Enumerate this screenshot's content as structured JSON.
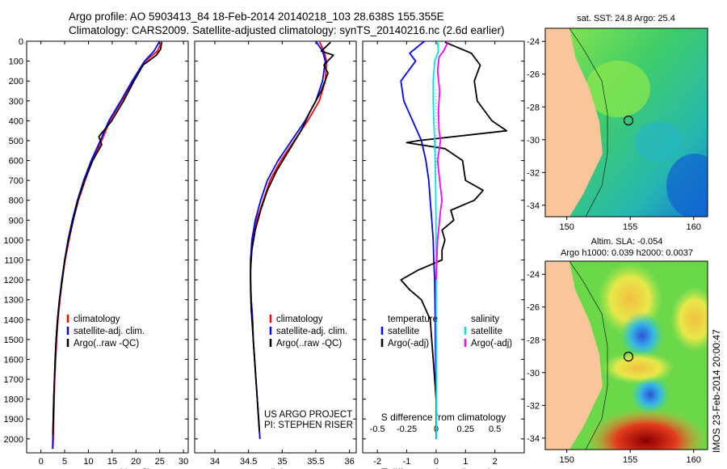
{
  "header": {
    "line1": "Argo profile: AO 5903413_84 18-Feb-2014 20140218_103 28.638S 155.355E",
    "line2": "Climatology: CARS2009. Satellite-adjusted climatology: synTS_20140216.nc (2.6d earlier)"
  },
  "colors": {
    "climatology": "#ff0000",
    "satellite": "#0000ff",
    "argo": "#000000",
    "sal_satellite": "#00e5e5",
    "sal_argo": "#ff00ff",
    "land": "#f8c69a"
  },
  "legend_temp_panel": [
    "climatology",
    "satellite-adj. clim.",
    "Argo(..raw -QC)"
  ],
  "legend_sal_panel": [
    "climatology",
    "satellite-adj. clim.",
    "Argo(..raw -QC)"
  ],
  "legend_diff": {
    "temp_header": "temperature",
    "sal_header": "salinity",
    "satellite": "satellite",
    "argo_adj": "Argo(-adj)"
  },
  "credit": {
    "line1": "US ARGO PROJECT",
    "line2": "PI: STEPHEN RISER"
  },
  "map_sst": {
    "title": "sat. SST: 24.8 Argo: 25.4"
  },
  "map_sla": {
    "title1": "Altim. SLA: -0.054",
    "title2": "Argo h1000: 0.039 h2000: 0.0037"
  },
  "side_stamp": "IMOS 23-Feb-2014 20:00:47",
  "chart_data": [
    {
      "type": "line",
      "xlabel": "temperature (deg C)",
      "ylabel": "",
      "xlim": [
        -3,
        31
      ],
      "ylim": [
        2070,
        0
      ],
      "xticks": [
        0,
        5,
        10,
        15,
        20,
        25,
        30
      ],
      "yticks": [
        0,
        100,
        200,
        300,
        400,
        500,
        600,
        700,
        800,
        900,
        1000,
        1100,
        1200,
        1300,
        1400,
        1500,
        1600,
        1700,
        1800,
        1900,
        2000
      ],
      "series": [
        {
          "name": "climatology",
          "color": "#ff0000",
          "x": [
            25.5,
            24.5,
            22,
            19.5,
            17,
            14.5,
            12.8,
            10.8,
            9.3,
            7.9,
            6.8,
            5.9,
            5.1,
            4.5,
            4.0,
            3.6,
            3.3,
            3.1,
            2.9,
            2.8,
            2.7,
            2.6,
            2.5
          ],
          "y": [
            0,
            50,
            100,
            200,
            300,
            400,
            500,
            600,
            700,
            800,
            900,
            1000,
            1100,
            1200,
            1300,
            1400,
            1500,
            1600,
            1700,
            1800,
            1900,
            2000,
            2050
          ]
        },
        {
          "name": "satellite-adj. clim.",
          "color": "#0000ff",
          "x": [
            25.0,
            23.8,
            21.8,
            19.2,
            16.8,
            14.3,
            12.5,
            10.6,
            9.0,
            7.7,
            6.6,
            5.7,
            5.0,
            4.4,
            3.9,
            3.5,
            3.2,
            3.0,
            2.85,
            2.7,
            2.6,
            2.5,
            2.45
          ],
          "y": [
            0,
            50,
            100,
            200,
            300,
            400,
            500,
            600,
            700,
            800,
            900,
            1000,
            1100,
            1200,
            1300,
            1400,
            1500,
            1600,
            1700,
            1800,
            1900,
            2000,
            2050
          ]
        },
        {
          "name": "Argo(..raw -QC)",
          "color": "#000000",
          "x": [
            25.4,
            25.2,
            24.3,
            21.5,
            19.6,
            17.4,
            14.9,
            12.2,
            12.8,
            10.9,
            9.2,
            7.8,
            6.8,
            5.8,
            5.0,
            4.5,
            3.9,
            3.5,
            3.2,
            3.0,
            2.85,
            2.7,
            2.6,
            2.5
          ],
          "y": [
            5,
            40,
            70,
            120,
            200,
            300,
            400,
            480,
            520,
            600,
            700,
            800,
            900,
            1000,
            1100,
            1200,
            1300,
            1400,
            1500,
            1600,
            1700,
            1800,
            1900,
            1980
          ]
        }
      ]
    },
    {
      "type": "line",
      "xlabel": "salinity",
      "ylabel": "",
      "xlim": [
        33.7,
        36.1
      ],
      "ylim": [
        2070,
        0
      ],
      "xticks": [
        34,
        34.5,
        35,
        35.5,
        36
      ],
      "series": [
        {
          "name": "climatology",
          "color": "#ff0000",
          "x": [
            35.55,
            35.62,
            35.66,
            35.64,
            35.55,
            35.38,
            35.18,
            34.98,
            34.82,
            34.72,
            34.62,
            34.56,
            34.53,
            34.53,
            34.54,
            34.56,
            34.57,
            34.59,
            34.61,
            34.63,
            34.65,
            34.67
          ],
          "y": [
            0,
            50,
            100,
            200,
            300,
            400,
            500,
            600,
            700,
            800,
            900,
            1000,
            1100,
            1200,
            1300,
            1400,
            1500,
            1600,
            1700,
            1800,
            1900,
            2000
          ]
        },
        {
          "name": "satellite-adj. clim.",
          "color": "#0000ff",
          "x": [
            35.5,
            35.6,
            35.64,
            35.6,
            35.5,
            35.34,
            35.14,
            34.94,
            34.78,
            34.68,
            34.6,
            34.55,
            34.53,
            34.53,
            34.54,
            34.56,
            34.57,
            34.59,
            34.61,
            34.63,
            34.65,
            34.67
          ],
          "y": [
            0,
            50,
            100,
            200,
            300,
            400,
            500,
            600,
            700,
            800,
            900,
            1000,
            1100,
            1200,
            1300,
            1400,
            1500,
            1600,
            1700,
            1800,
            1900,
            2000
          ]
        },
        {
          "name": "Argo(..raw -QC)",
          "color": "#000000",
          "x": [
            35.72,
            35.58,
            35.76,
            35.62,
            35.68,
            35.58,
            35.42,
            35.28,
            35.1,
            34.92,
            34.78,
            34.68,
            34.6,
            34.55,
            34.53,
            34.53,
            34.54,
            34.56,
            34.58,
            34.6,
            34.62,
            34.64,
            34.66
          ],
          "y": [
            5,
            50,
            70,
            120,
            160,
            250,
            350,
            450,
            550,
            650,
            750,
            850,
            950,
            1050,
            1150,
            1250,
            1350,
            1450,
            1550,
            1650,
            1750,
            1850,
            1960
          ]
        }
      ]
    },
    {
      "type": "line",
      "xlabel": "T difference from climatology",
      "x2label": "S difference from climatology",
      "ylabel": "",
      "xlim": [
        -2.5,
        3.0
      ],
      "ylim": [
        2070,
        0
      ],
      "xticks": [
        -2,
        -1,
        0,
        1,
        2
      ],
      "x2ticks": [
        -0.5,
        -0.25,
        0,
        0.25,
        0.5
      ],
      "series": [
        {
          "name": "temperature satellite",
          "color": "#0000ff",
          "x": [
            -0.4,
            -0.9,
            -0.7,
            -1.2,
            -1.1,
            -0.8,
            -0.5,
            -0.35,
            -0.25,
            -0.2,
            -0.15,
            -0.1,
            -0.08,
            -0.05,
            -0.03,
            -0.02,
            0,
            0
          ],
          "y": [
            0,
            60,
            100,
            200,
            300,
            400,
            500,
            600,
            700,
            800,
            900,
            1000,
            1100,
            1200,
            1400,
            1600,
            1800,
            2000
          ]
        },
        {
          "name": "temperature Argo(-adj)",
          "color": "#000000",
          "x": [
            0.3,
            1.2,
            1.5,
            1.3,
            1.4,
            1.9,
            2.4,
            -0.6,
            -1.0,
            0.3,
            0.9,
            1.0,
            1.6,
            1.3,
            0.5,
            0.6,
            0.2,
            0.3,
            0.2,
            0.2,
            -0.6,
            -1.2,
            -0.9,
            -0.5,
            -0.2,
            -0.1,
            0.0
          ],
          "y": [
            5,
            60,
            120,
            200,
            300,
            400,
            450,
            500,
            510,
            540,
            600,
            700,
            750,
            800,
            850,
            900,
            950,
            1000,
            1050,
            1100,
            1150,
            1200,
            1250,
            1300,
            1400,
            1600,
            1800
          ]
        },
        {
          "name": "salinity satellite",
          "color": "#00e5e5",
          "x": [
            0.05,
            0.08,
            -0.05,
            -0.1,
            -0.1,
            -0.08,
            -0.05,
            -0.03,
            -0.02,
            -0.01,
            0,
            0,
            0,
            0.01,
            0.01,
            0.01
          ],
          "y": [
            0,
            50,
            100,
            200,
            300,
            400,
            500,
            600,
            700,
            800,
            1000,
            1200,
            1400,
            1600,
            1800,
            2000
          ]
        },
        {
          "name": "salinity Argo(-adj)",
          "color": "#ff00ff",
          "x": [
            0.4,
            0.25,
            0.1,
            0.05,
            0.12,
            0.08,
            0.1,
            0.15,
            0.05,
            0.12,
            0.2,
            0.15,
            0.05,
            0.0
          ],
          "y": [
            5,
            50,
            80,
            150,
            250,
            350,
            450,
            500,
            600,
            700,
            800,
            850,
            1000,
            1200
          ]
        }
      ]
    }
  ]
}
